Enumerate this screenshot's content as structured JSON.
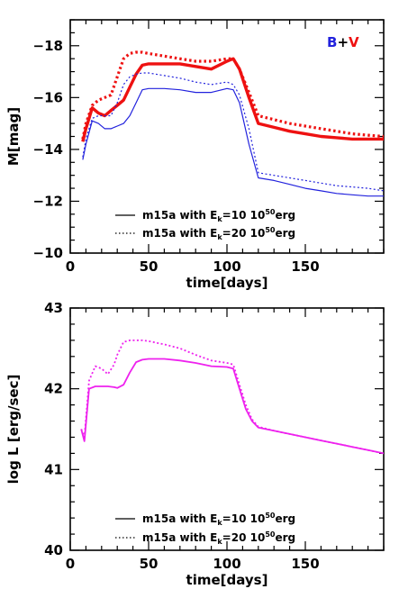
{
  "chart_data": [
    {
      "type": "line",
      "xlabel": "time[days]",
      "ylabel": "M[mag]",
      "xlim": [
        0,
        200
      ],
      "ylim": [
        -10,
        -19
      ],
      "y_inverted": true,
      "x_ticks": [
        0,
        50,
        100,
        150
      ],
      "y_ticks": [
        -10,
        -12,
        -14,
        -16,
        -18
      ],
      "x_tick_labels": [
        "0",
        "50",
        "100",
        "150"
      ],
      "y_tick_labels": [
        "−10",
        "−12",
        "−14",
        "−16",
        "−18"
      ],
      "band_label": {
        "b": "B",
        "plus": "+",
        "v": "V"
      },
      "colors": {
        "B": "#2222dd",
        "V": "#ee1111"
      },
      "legend": [
        {
          "label_prefix": "m15a with E",
          "label_sub": "k",
          "label_eq": "=10 10",
          "label_sup": "50",
          "label_suffix": "erg",
          "style": "solid"
        },
        {
          "label_prefix": "m15a with E",
          "label_sub": "k",
          "label_eq": "=20 10",
          "label_sup": "50",
          "label_suffix": "erg",
          "style": "dotted"
        }
      ],
      "series": [
        {
          "band": "V",
          "model": "E=10",
          "style": "solid",
          "color": "#ee1111",
          "x": [
            8,
            10,
            14,
            18,
            22,
            26,
            30,
            34,
            38,
            42,
            46,
            50,
            60,
            70,
            80,
            90,
            100,
            104,
            108,
            114,
            120,
            130,
            140,
            150,
            160,
            170,
            180,
            190,
            200
          ],
          "y": [
            -14.3,
            -14.8,
            -15.6,
            -15.4,
            -15.3,
            -15.5,
            -15.7,
            -15.9,
            -16.4,
            -16.9,
            -17.25,
            -17.3,
            -17.3,
            -17.3,
            -17.2,
            -17.1,
            -17.4,
            -17.5,
            -17.1,
            -16.0,
            -15.0,
            -14.85,
            -14.7,
            -14.6,
            -14.5,
            -14.45,
            -14.4,
            -14.4,
            -14.4
          ]
        },
        {
          "band": "V",
          "model": "E=20",
          "style": "dotted",
          "color": "#ee1111",
          "x": [
            8,
            10,
            14,
            18,
            22,
            26,
            30,
            34,
            38,
            42,
            46,
            50,
            60,
            70,
            80,
            90,
            100,
            104,
            108,
            114,
            120,
            130,
            140,
            150,
            160,
            170,
            180,
            190,
            200
          ],
          "y": [
            -14.4,
            -15.0,
            -15.7,
            -15.9,
            -16.0,
            -16.1,
            -16.8,
            -17.5,
            -17.7,
            -17.75,
            -17.75,
            -17.7,
            -17.6,
            -17.5,
            -17.4,
            -17.4,
            -17.5,
            -17.5,
            -17.1,
            -16.2,
            -15.3,
            -15.15,
            -15.0,
            -14.9,
            -14.8,
            -14.7,
            -14.6,
            -14.55,
            -14.5
          ]
        },
        {
          "band": "B",
          "model": "E=10",
          "style": "solid",
          "color": "#2222dd",
          "x": [
            8,
            10,
            14,
            18,
            22,
            26,
            30,
            34,
            38,
            42,
            46,
            50,
            60,
            70,
            80,
            90,
            100,
            104,
            108,
            114,
            120,
            130,
            140,
            150,
            160,
            170,
            180,
            190,
            200
          ],
          "y": [
            -13.6,
            -14.2,
            -15.1,
            -15.0,
            -14.8,
            -14.8,
            -14.9,
            -15.0,
            -15.3,
            -15.8,
            -16.3,
            -16.35,
            -16.35,
            -16.3,
            -16.2,
            -16.2,
            -16.35,
            -16.3,
            -15.8,
            -14.2,
            -12.9,
            -12.8,
            -12.65,
            -12.5,
            -12.4,
            -12.3,
            -12.25,
            -12.2,
            -12.2
          ]
        },
        {
          "band": "B",
          "model": "E=20",
          "style": "dotted",
          "color": "#2222dd",
          "x": [
            8,
            10,
            14,
            18,
            22,
            26,
            30,
            34,
            38,
            42,
            46,
            50,
            60,
            70,
            80,
            90,
            100,
            104,
            108,
            114,
            120,
            130,
            140,
            150,
            160,
            170,
            180,
            190,
            200
          ],
          "y": [
            -13.7,
            -14.4,
            -15.2,
            -15.3,
            -15.3,
            -15.3,
            -15.8,
            -16.5,
            -16.8,
            -16.9,
            -16.95,
            -16.95,
            -16.85,
            -16.75,
            -16.6,
            -16.5,
            -16.6,
            -16.5,
            -16.1,
            -14.8,
            -13.1,
            -13.0,
            -12.9,
            -12.8,
            -12.7,
            -12.6,
            -12.55,
            -12.5,
            -12.4
          ]
        }
      ]
    },
    {
      "type": "line",
      "xlabel": "time[days]",
      "ylabel": "log L [erg/sec]",
      "xlim": [
        0,
        200
      ],
      "ylim": [
        40,
        43
      ],
      "x_ticks": [
        0,
        50,
        100,
        150
      ],
      "y_ticks": [
        40,
        41,
        42,
        43
      ],
      "x_tick_labels": [
        "0",
        "50",
        "100",
        "150"
      ],
      "y_tick_labels": [
        "40",
        "41",
        "42",
        "43"
      ],
      "legend": [
        {
          "label_prefix": "m15a with E",
          "label_sub": "k",
          "label_eq": "=10 10",
          "label_sup": "50",
          "label_suffix": "erg",
          "style": "solid"
        },
        {
          "label_prefix": "m15a with E",
          "label_sub": "k",
          "label_eq": "=20 10",
          "label_sup": "50",
          "label_suffix": "erg",
          "style": "dotted"
        }
      ],
      "series": [
        {
          "model": "E=10",
          "style": "solid",
          "color": "#ee22ee",
          "x": [
            7,
            9,
            12,
            16,
            20,
            24,
            28,
            30,
            34,
            38,
            42,
            46,
            50,
            60,
            70,
            80,
            90,
            100,
            104,
            108,
            112,
            116,
            120,
            130,
            140,
            150,
            160,
            170,
            180,
            190,
            200
          ],
          "y": [
            41.5,
            41.35,
            42.0,
            42.03,
            42.03,
            42.03,
            42.02,
            42.01,
            42.05,
            42.2,
            42.33,
            42.36,
            42.37,
            42.37,
            42.35,
            42.32,
            42.28,
            42.27,
            42.25,
            42.0,
            41.75,
            41.6,
            41.52,
            41.48,
            41.44,
            41.4,
            41.36,
            41.32,
            41.28,
            41.24,
            41.2
          ]
        },
        {
          "model": "E=20",
          "style": "dotted",
          "color": "#ee22ee",
          "x": [
            7,
            9,
            12,
            16,
            20,
            24,
            28,
            30,
            34,
            38,
            42,
            46,
            50,
            60,
            70,
            80,
            90,
            100,
            104,
            108,
            112,
            116,
            120,
            130,
            140,
            150,
            160,
            170,
            180,
            190,
            200
          ],
          "y": [
            41.5,
            41.4,
            42.1,
            42.28,
            42.25,
            42.18,
            42.3,
            42.42,
            42.58,
            42.6,
            42.6,
            42.6,
            42.59,
            42.55,
            42.5,
            42.42,
            42.35,
            42.32,
            42.3,
            42.05,
            41.8,
            41.62,
            41.53,
            41.48,
            41.44,
            41.4,
            41.36,
            41.32,
            41.28,
            41.24,
            41.2
          ]
        }
      ]
    }
  ]
}
